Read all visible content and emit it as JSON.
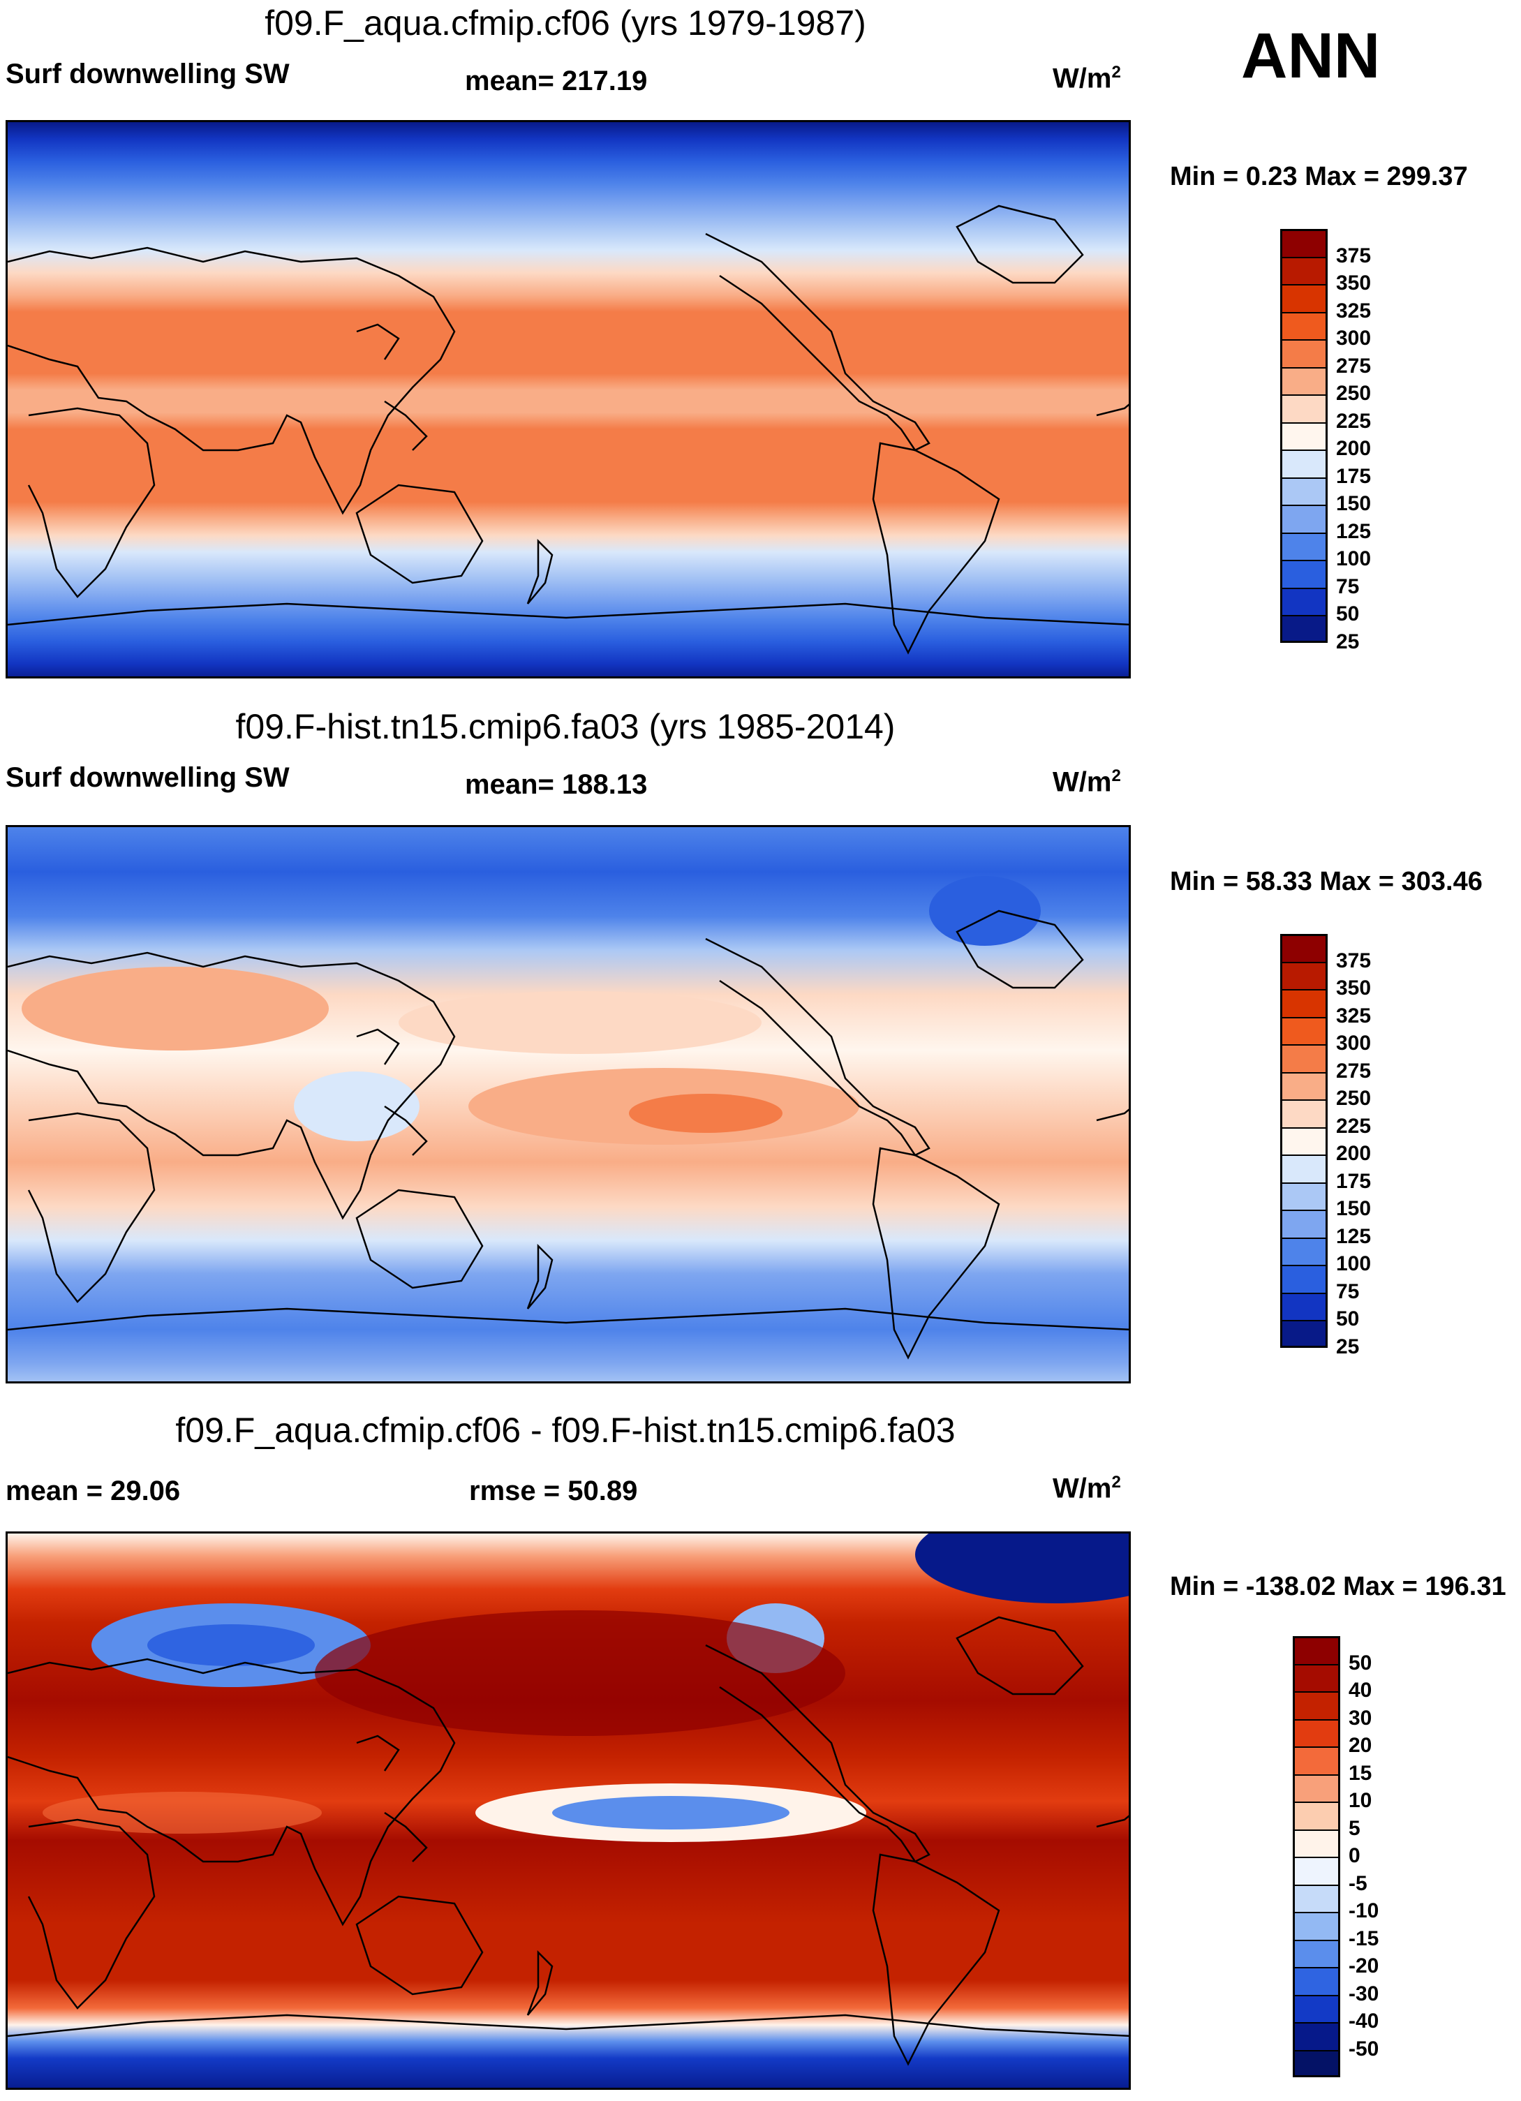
{
  "season": "ANN",
  "panels": [
    {
      "title": "f09.F_aqua.cfmip.cf06 (yrs 1979-1987)",
      "left_label": "Surf downwelling SW",
      "center_label": "mean= 217.19",
      "units_main": "W/m",
      "units_exp": "2",
      "minmax": "Min =   0.23 Max = 299.37",
      "colorbar": {
        "labels": [
          "375",
          "350",
          "325",
          "300",
          "275",
          "250",
          "225",
          "200",
          "175",
          "150",
          "125",
          "100",
          "75",
          "50",
          "25"
        ],
        "colors": [
          "#8e0000",
          "#b81a00",
          "#d83400",
          "#ef5a1e",
          "#f47c48",
          "#f9ad87",
          "#fdd9c4",
          "#fff6ee",
          "#d9e8fb",
          "#abc8f5",
          "#7ea6f0",
          "#4e83ea",
          "#2a5fdf",
          "#1235c2",
          "#081a88"
        ]
      }
    },
    {
      "title": "f09.F-hist.tn15.cmip6.fa03 (yrs 1985-2014)",
      "left_label": "Surf downwelling SW",
      "center_label": "mean= 188.13",
      "units_main": "W/m",
      "units_exp": "2",
      "minmax": "Min =  58.33 Max = 303.46",
      "colorbar": {
        "labels": [
          "375",
          "350",
          "325",
          "300",
          "275",
          "250",
          "225",
          "200",
          "175",
          "150",
          "125",
          "100",
          "75",
          "50",
          "25"
        ],
        "colors": [
          "#8e0000",
          "#b81a00",
          "#d83400",
          "#ef5a1e",
          "#f47c48",
          "#f9ad87",
          "#fdd9c4",
          "#fff6ee",
          "#d9e8fb",
          "#abc8f5",
          "#7ea6f0",
          "#4e83ea",
          "#2a5fdf",
          "#1235c2",
          "#081a88"
        ]
      }
    },
    {
      "title": "f09.F_aqua.cfmip.cf06 - f09.F-hist.tn15.cmip6.fa03",
      "left_label": "mean =  29.06",
      "center_label": "rmse =  50.89",
      "units_main": "W/m",
      "units_exp": "2",
      "minmax": "Min = -138.02 Max = 196.31",
      "colorbar": {
        "labels": [
          "50",
          "40",
          "30",
          "20",
          "15",
          "10",
          "5",
          "0",
          "-5",
          "-10",
          "-15",
          "-20",
          "-30",
          "-40",
          "-50"
        ],
        "colors": [
          "#8e0000",
          "#a50c00",
          "#c42200",
          "#e23c10",
          "#f36a3a",
          "#f8a07a",
          "#fccdb0",
          "#fff3ea",
          "#eef4fe",
          "#c6dbf9",
          "#93b9f3",
          "#5b8eec",
          "#2f64e1",
          "#133ac6",
          "#06198a",
          "#041266"
        ]
      }
    }
  ]
}
